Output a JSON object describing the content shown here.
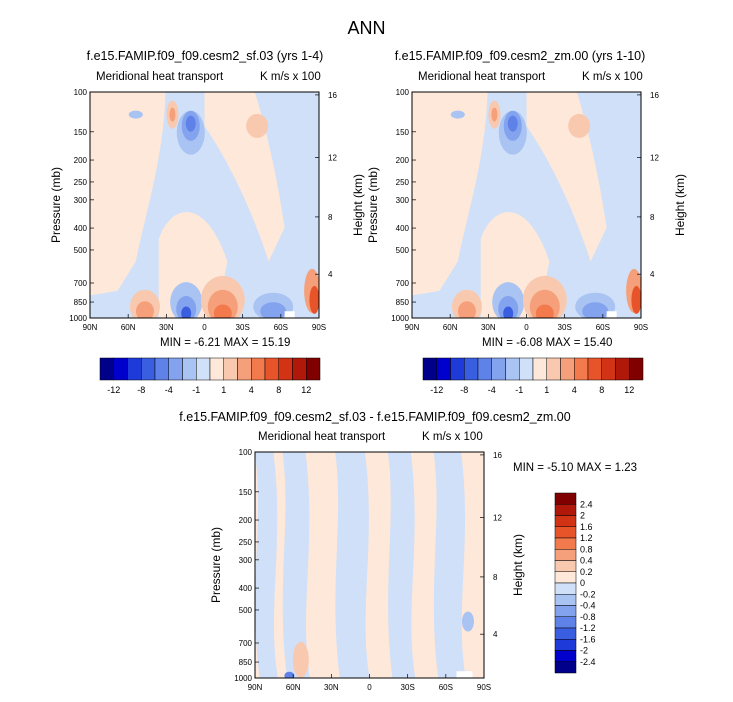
{
  "figure_title": "ANN",
  "colors": {
    "h_neg": [
      "#00008b",
      "#0000cd",
      "#1e3ad8",
      "#3a5ee0",
      "#5f82e8",
      "#84a3ee",
      "#a9c3f3",
      "#cfe0f8"
    ],
    "h_pos": [
      "#fde8da",
      "#f8c9ae",
      "#f5a07a",
      "#f27a4c",
      "#e8542a",
      "#d23315",
      "#b0180a",
      "#800000"
    ],
    "d_neg": [
      "#00008b",
      "#0000cd",
      "#1e3ad8",
      "#3a5ee0",
      "#5f82e8",
      "#84a3ee",
      "#a9c3f3",
      "#cfe0f8"
    ],
    "d_pos": [
      "#fde8da",
      "#f8c9ae",
      "#f5a07a",
      "#f27a4c",
      "#e8542a",
      "#d23315",
      "#b0180a",
      "#800000"
    ]
  },
  "panels": [
    {
      "title": "f.e15.FAMIP.f09_f09.cesm2_sf.03 (yrs 1-4)",
      "subtitle_left": "Meridional heat transport",
      "subtitle_right": "K m/s x 100",
      "minmax": "MIN = -6.21  MAX = 15.19"
    },
    {
      "title": "f.e15.FAMIP.f09_f09.cesm2_zm.00 (yrs 1-10)",
      "subtitle_left": "Meridional heat transport",
      "subtitle_right": "K m/s x 100",
      "minmax": "MIN = -6.08  MAX = 15.40"
    },
    {
      "title": "f.e15.FAMIP.f09_f09.cesm2_sf.03 - f.e15.FAMIP.f09_f09.cesm2_zm.00",
      "subtitle_left": "Meridional heat transport",
      "subtitle_right": "K m/s x 100",
      "minmax": "MIN = -5.10  MAX =  1.23"
    }
  ],
  "axes": {
    "ylabel_left": "Pressure (mb)",
    "ylabel_right": "Height (km)",
    "pressure_ticks": [
      "100",
      "150",
      "200",
      "250",
      "300",
      "400",
      "500",
      "700",
      "850",
      "1000"
    ],
    "height_ticks": [
      "16",
      "12",
      "8",
      "4"
    ],
    "lat_ticks": [
      "90N",
      "60N",
      "30N",
      "0",
      "30S",
      "60S",
      "90S"
    ]
  },
  "colorbars": {
    "horizontal_labels": [
      "-12",
      "-8",
      "-4",
      "-1",
      "1",
      "4",
      "8",
      "12"
    ],
    "vertical_labels": [
      "2.4",
      "2",
      "1.6",
      "1.2",
      "0.8",
      "0.4",
      "0.2",
      "0",
      "-0.2",
      "-0.4",
      "-0.8",
      "-1.2",
      "-1.6",
      "-2",
      "-2.4"
    ]
  },
  "chart_data": [
    {
      "type": "heatmap",
      "title": "f.e15.FAMIP.f09_f09.cesm2_sf.03 (yrs 1-4)",
      "subtitle": "Meridional heat transport",
      "units": "K m/s x 100",
      "xlabel": "",
      "ylabel": "Pressure (mb)",
      "y2label": "Height (km)",
      "x_ticks": [
        "90N",
        "60N",
        "30N",
        "0",
        "30S",
        "60S",
        "90S"
      ],
      "y_ticks": [
        100,
        150,
        200,
        250,
        300,
        400,
        500,
        700,
        850,
        1000
      ],
      "y2_ticks": [
        16,
        12,
        8,
        4
      ],
      "min": -6.21,
      "max": 15.19,
      "contour_levels": [
        -12,
        -8,
        -4,
        -1,
        1,
        4,
        8,
        12
      ]
    },
    {
      "type": "heatmap",
      "title": "f.e15.FAMIP.f09_f09.cesm2_zm.00 (yrs 1-10)",
      "subtitle": "Meridional heat transport",
      "units": "K m/s x 100",
      "xlabel": "",
      "ylabel": "Pressure (mb)",
      "y2label": "Height (km)",
      "x_ticks": [
        "90N",
        "60N",
        "30N",
        "0",
        "30S",
        "60S",
        "90S"
      ],
      "y_ticks": [
        100,
        150,
        200,
        250,
        300,
        400,
        500,
        700,
        850,
        1000
      ],
      "y2_ticks": [
        16,
        12,
        8,
        4
      ],
      "min": -6.08,
      "max": 15.4,
      "contour_levels": [
        -12,
        -8,
        -4,
        -1,
        1,
        4,
        8,
        12
      ]
    },
    {
      "type": "heatmap",
      "title": "f.e15.FAMIP.f09_f09.cesm2_sf.03 - f.e15.FAMIP.f09_f09.cesm2_zm.00",
      "subtitle": "Meridional heat transport",
      "units": "K m/s x 100",
      "xlabel": "",
      "ylabel": "Pressure (mb)",
      "y2label": "Height (km)",
      "x_ticks": [
        "90N",
        "60N",
        "30N",
        "0",
        "30S",
        "60S",
        "90S"
      ],
      "y_ticks": [
        100,
        150,
        200,
        250,
        300,
        400,
        500,
        700,
        850,
        1000
      ],
      "y2_ticks": [
        16,
        12,
        8,
        4
      ],
      "min": -5.1,
      "max": 1.23,
      "contour_levels": [
        -2.4,
        -2,
        -1.6,
        -1.2,
        -0.8,
        -0.4,
        -0.2,
        0,
        0.2,
        0.4,
        0.8,
        1.2,
        1.6,
        2,
        2.4
      ]
    }
  ]
}
